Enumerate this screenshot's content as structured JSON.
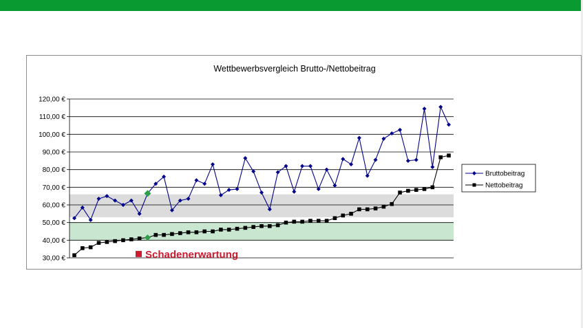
{
  "colors": {
    "top_bar": "#0a9a32",
    "brutto": "#00008b",
    "netto": "#000000",
    "gray_band": "#dcdcdc",
    "green_band": "#c8e6d0",
    "highlight": "#2e9e4a",
    "annotation": "#cc1a2e"
  },
  "chart_data": {
    "type": "line",
    "title": "Wettbewerbsvergleich Brutto-/Nettobeitrag",
    "xlabel": "",
    "ylabel": "",
    "ylim": [
      30,
      120
    ],
    "yticks": [
      30,
      40,
      50,
      60,
      70,
      80,
      90,
      100,
      110,
      120
    ],
    "ytick_labels": [
      "30,00 €",
      "40,00 €",
      "50,00 €",
      "60,00 €",
      "70,00 €",
      "80,00 €",
      "90,00 €",
      "100,00 €",
      "110,00 €",
      "120,00 €"
    ],
    "grid": true,
    "legend_position": "right",
    "bands": [
      {
        "name": "gray",
        "from": 53,
        "to": 66
      },
      {
        "name": "green",
        "from": 40,
        "to": 50
      }
    ],
    "highlight_index": 9,
    "series": [
      {
        "name": "Bruttobeitrag",
        "marker": "diamond",
        "values": [
          52.5,
          58.5,
          51.5,
          63.5,
          65,
          62.5,
          60,
          62.5,
          55,
          66.5,
          72,
          76,
          57,
          62.5,
          63.5,
          74,
          72,
          83,
          65.5,
          68.5,
          69,
          86.5,
          79,
          67,
          57.5,
          78.5,
          82,
          67.5,
          82,
          82,
          69,
          80,
          71,
          86,
          83,
          98,
          76.5,
          85.5,
          97.5,
          100.5,
          102.5,
          85,
          85.5,
          114.5,
          81.5,
          115.5,
          105.5
        ]
      },
      {
        "name": "Nettobeitrag",
        "marker": "square",
        "values": [
          31.5,
          35.5,
          36,
          38.5,
          39,
          39.5,
          40,
          40.5,
          41,
          41.5,
          43,
          43,
          43.5,
          44,
          44.5,
          44.5,
          45,
          45,
          46,
          46,
          46.5,
          47,
          47.5,
          48,
          48,
          48.5,
          50,
          50.5,
          50.5,
          51,
          51,
          51,
          52.5,
          54,
          55,
          57.5,
          57.5,
          58,
          59,
          60.5,
          67,
          68,
          68.5,
          69,
          70,
          87,
          88
        ]
      }
    ],
    "annotation": {
      "text": "Schadenerwartung",
      "value": 32
    }
  }
}
